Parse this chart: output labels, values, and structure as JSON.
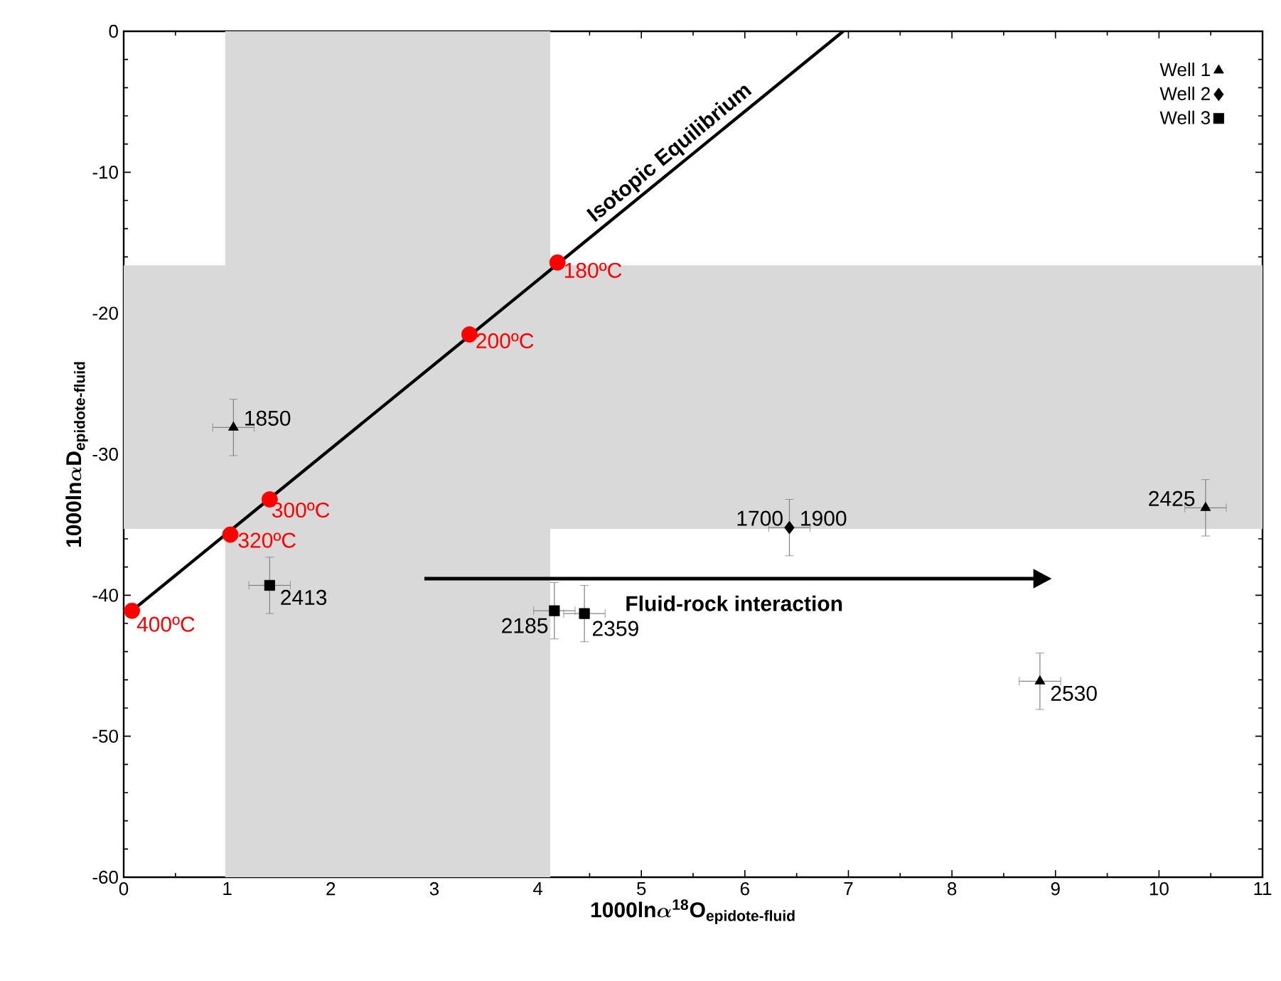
{
  "chart_data": {
    "type": "scatter",
    "xlabel": "\\textbf{1000ln}\\boldsymbol{\\alpha}^{\\textbf{18}}\\textbf{O}_{\\textbf{epidote-fluid}}",
    "ylabel": "\\textbf{1000ln}\\boldsymbol{\\alpha}\\textbf{D}_{\\textbf{epidote-fluid}}",
    "xlim": [
      0,
      11
    ],
    "ylim": [
      -60,
      0
    ],
    "xticks": [
      0,
      1,
      2,
      3,
      4,
      5,
      6,
      7,
      8,
      9,
      10,
      11
    ],
    "yticks": [
      -60,
      -50,
      -40,
      -30,
      -20,
      -10,
      0
    ],
    "grid": false,
    "legend": "top right",
    "bands": [
      {
        "axis": "x",
        "from": 0.98,
        "to": 4.12,
        "color": "#d9d9d9"
      },
      {
        "axis": "y",
        "from": -35.3,
        "to": -16.6,
        "color": "#d9d9d9"
      }
    ],
    "series": [
      {
        "type": "line",
        "color": "#000000",
        "marker": "none",
        "x": [
          0.08,
          6.95
        ],
        "values": [
          -41.1,
          0
        ]
      },
      {
        "type": "scatter",
        "color": "#ff0000",
        "marker": "circle",
        "x": [
          0.08,
          1.03,
          1.41,
          3.34,
          4.19
        ],
        "values": [
          -41.1,
          -35.7,
          -33.2,
          -21.5,
          -16.4
        ]
      },
      {
        "name": "Well 1",
        "color": "#000000",
        "marker": "triangle",
        "x": [
          1.06,
          10.45,
          8.85
        ],
        "values": [
          -28.1,
          -33.8,
          -46.1
        ],
        "errors": [
          2,
          2,
          2
        ],
        "xerrors": [
          0.2,
          0.2,
          0.2
        ]
      },
      {
        "name": "Well 2",
        "color": "#000000",
        "marker": "diamond",
        "x": [
          6.43
        ],
        "values": [
          -35.2
        ],
        "errors": [
          2
        ],
        "xerrors": [
          0.2
        ]
      },
      {
        "name": "Well 3",
        "color": "#000000",
        "marker": "square",
        "x": [
          1.41,
          4.16,
          4.45
        ],
        "values": [
          -39.3,
          -41.1,
          -41.3
        ],
        "errors": [
          2,
          2,
          2
        ],
        "xerrors": [
          0.2,
          0.2,
          0.2
        ]
      }
    ],
    "annotations": [
      {
        "text": "**Isotopic Equilibrium**",
        "x": 5.35,
        "y": -9.6
      },
      "**Fluid-rock interaction**",
      {
        "text": "400ºC",
        "x": 0.08,
        "y": -41.1
      },
      {
        "text": "320ºC",
        "x": 1.03,
        "y": -35.7
      },
      {
        "text": "300ºC",
        "x": 1.41,
        "y": -33.2
      },
      {
        "text": "200ºC",
        "x": 3.34,
        "y": -21.5
      },
      {
        "text": "180ºC",
        "x": 4.19,
        "y": -16.4
      },
      {
        "text": "1850",
        "x": 1.06,
        "y": -28.1
      },
      {
        "text": "2413",
        "x": 1.41,
        "y": -39.3
      },
      {
        "text": "2185",
        "x": 4.16,
        "y": -41.1
      },
      {
        "text": "2359",
        "x": 4.45,
        "y": -41.3
      },
      {
        "text": "1700",
        "x": 6.43,
        "y": -35.2
      },
      {
        "text": "1900",
        "x": 6.43,
        "y": -35.2
      },
      {
        "text": "2425",
        "x": 10.45,
        "y": -33.8
      },
      {
        "text": "2530",
        "x": 8.85,
        "y": -46.1
      }
    ]
  }
}
